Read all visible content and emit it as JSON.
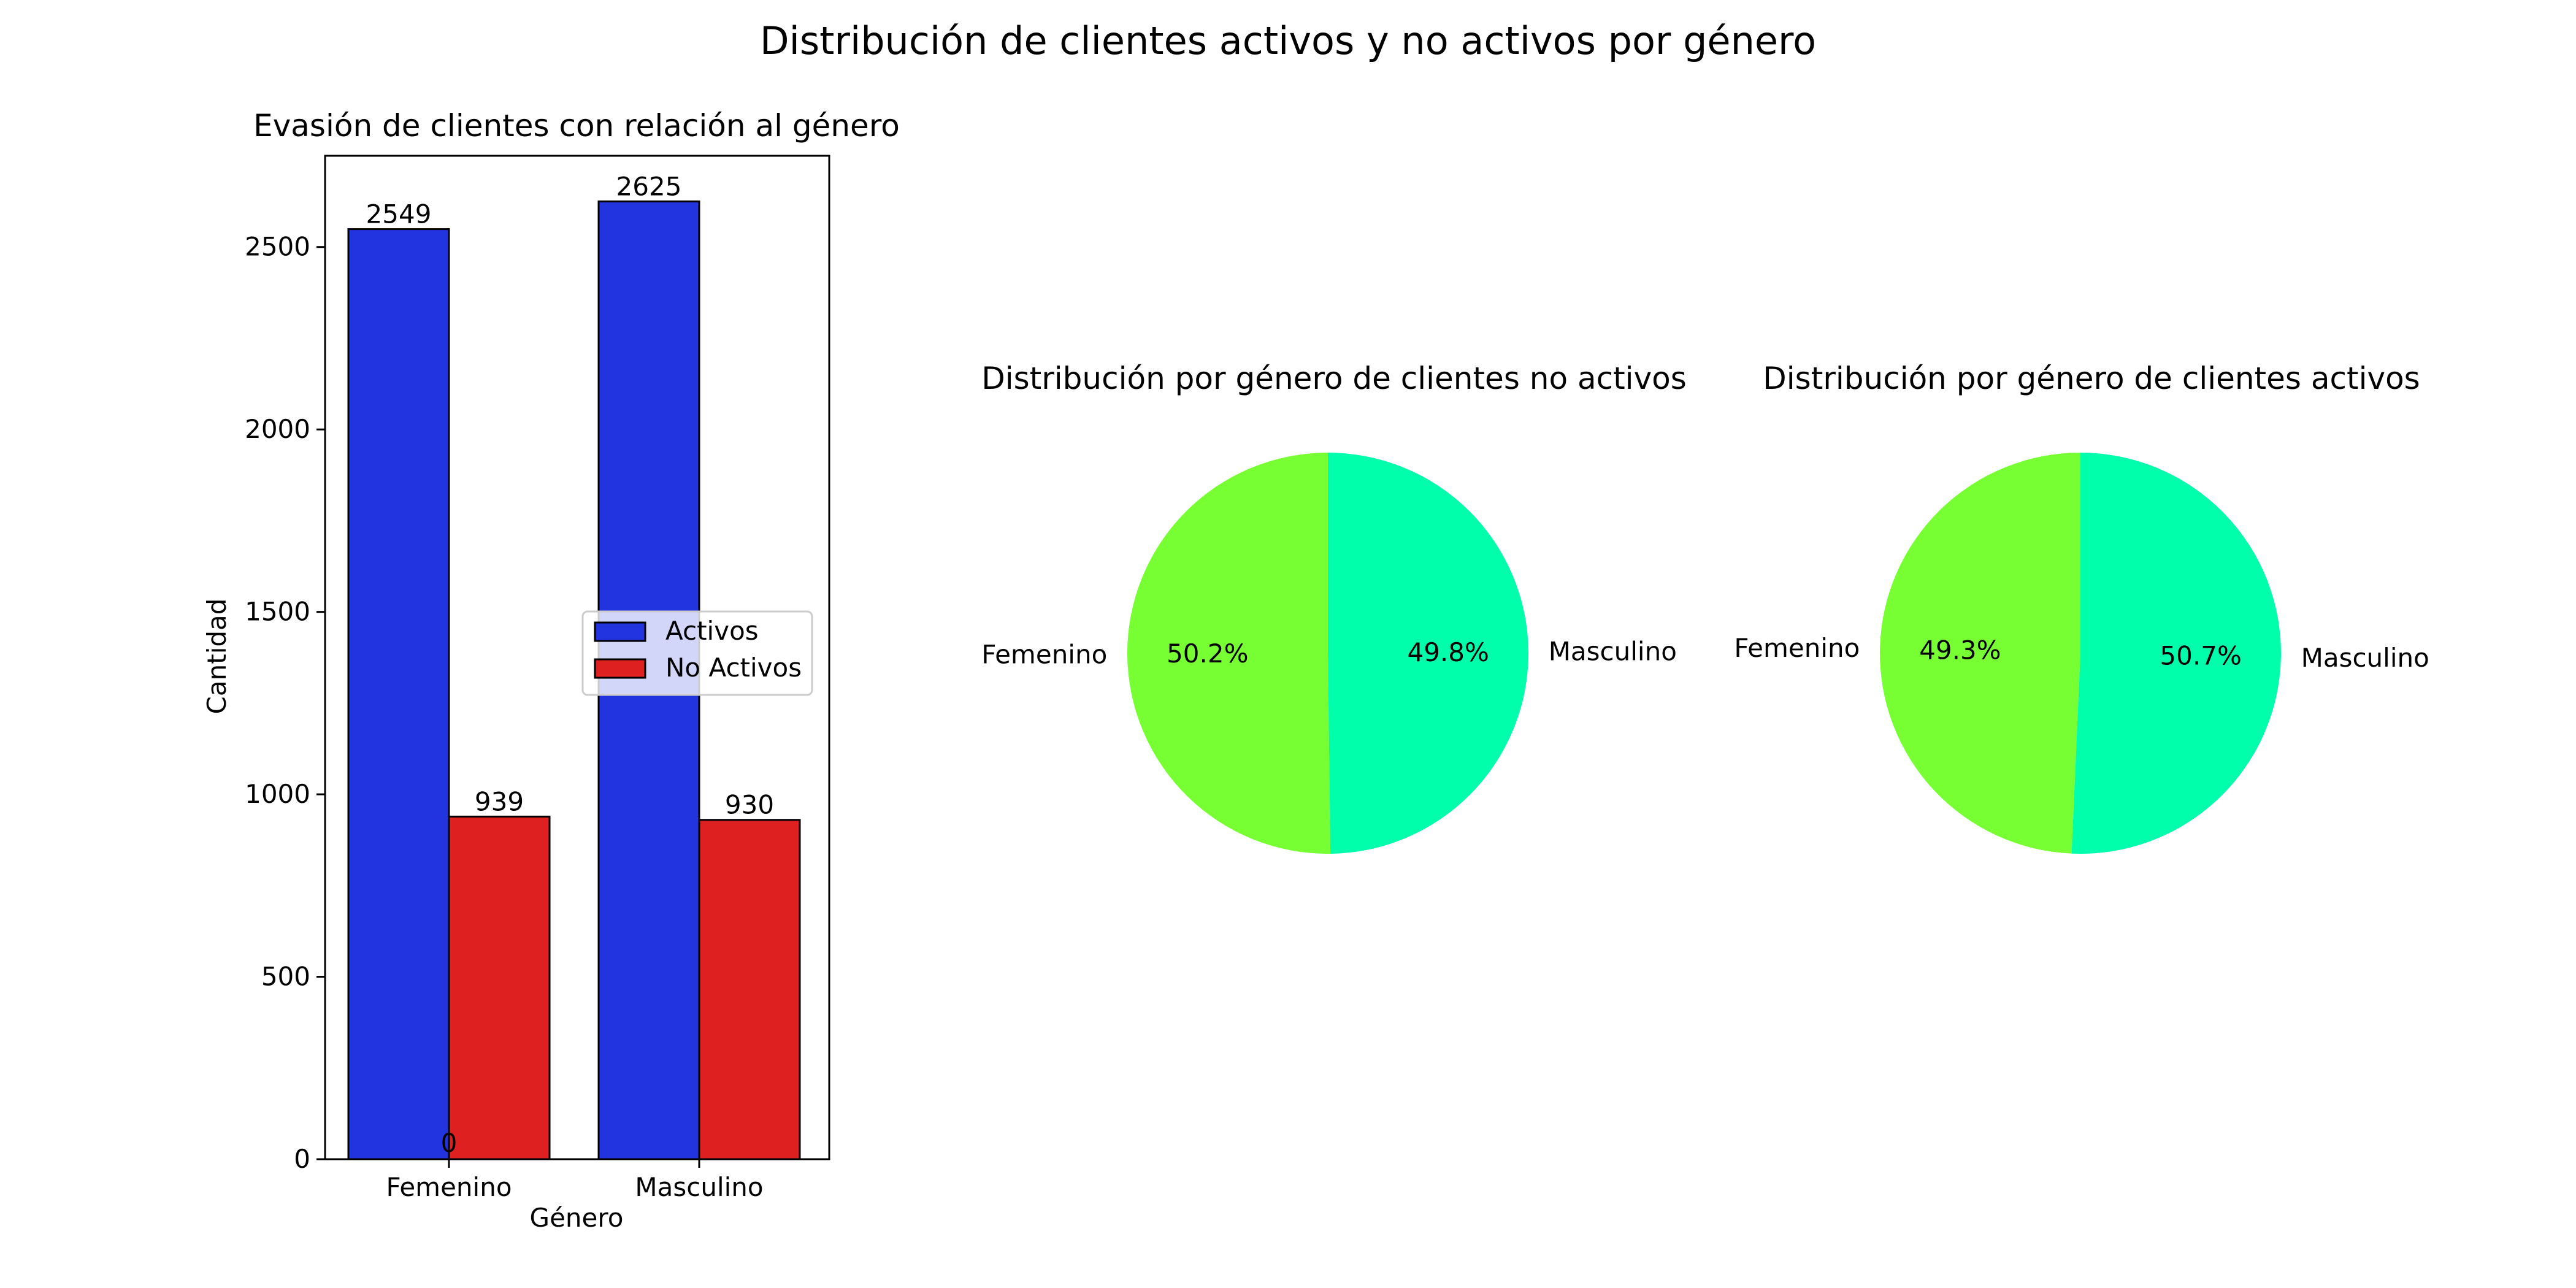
{
  "figure": {
    "suptitle": "Distribución de clientes activos y no activos por género"
  },
  "chart_data": [
    {
      "type": "bar",
      "title": "Evasión de clientes con relación al género",
      "xlabel": "Género",
      "ylabel": "Cantidad",
      "categories": [
        "Femenino",
        "Masculino"
      ],
      "series": [
        {
          "name": "Activos",
          "values": [
            2549,
            2625
          ],
          "color": "#2233e0"
        },
        {
          "name": "No Activos",
          "values": [
            939,
            930
          ],
          "color": "#df2020"
        }
      ],
      "extra_labels": [
        {
          "text": "0",
          "category": "Femenino"
        }
      ],
      "ylim": [
        0,
        2750
      ],
      "yticks": [
        0,
        500,
        1000,
        1500,
        2000,
        2500
      ],
      "grid": false,
      "legend": "center-right"
    },
    {
      "type": "pie",
      "title": "Distribución por género de clientes no activos",
      "slices": [
        {
          "label": "Femenino",
          "value": 50.2,
          "pct": "50.2%",
          "color": "#77ff33"
        },
        {
          "label": "Masculino",
          "value": 49.8,
          "pct": "49.8%",
          "color": "#00ffaa"
        }
      ]
    },
    {
      "type": "pie",
      "title": "Distribución por género de clientes activos",
      "slices": [
        {
          "label": "Femenino",
          "value": 49.3,
          "pct": "49.3%",
          "color": "#77ff33"
        },
        {
          "label": "Masculino",
          "value": 50.7,
          "pct": "50.7%",
          "color": "#00ffaa"
        }
      ]
    }
  ]
}
